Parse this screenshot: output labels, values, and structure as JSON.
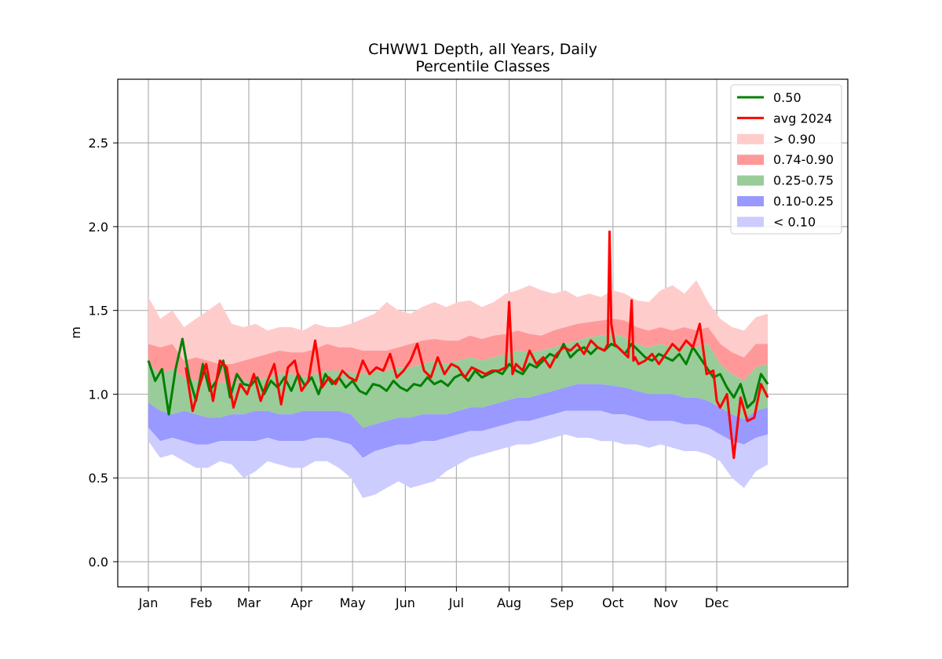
{
  "chart_data": {
    "type": "area",
    "title": "CHWW1 Depth, all Years, Daily",
    "subtitle": "Percentile Classes",
    "xlabel": "",
    "ylabel": "m",
    "ylim": [
      -0.15,
      2.88
    ],
    "xlim": [
      -17,
      412
    ],
    "yticks": [
      0.0,
      0.5,
      1.0,
      1.5,
      2.0,
      2.5
    ],
    "ytick_labels": [
      "0.0",
      "0.5",
      "1.0",
      "1.5",
      "2.0",
      "2.5"
    ],
    "xticks": [
      1,
      32,
      60,
      91,
      121,
      152,
      182,
      213,
      244,
      274,
      305,
      335
    ],
    "xtick_labels": [
      "Jan",
      "Feb",
      "Mar",
      "Apr",
      "May",
      "Jun",
      "Jul",
      "Aug",
      "Sep",
      "Oct",
      "Nov",
      "Dec"
    ],
    "grid": true,
    "legend_position": "top-right",
    "x": [
      1,
      8,
      15,
      22,
      29,
      36,
      43,
      50,
      57,
      64,
      71,
      78,
      85,
      92,
      99,
      106,
      113,
      120,
      127,
      134,
      141,
      148,
      155,
      162,
      169,
      176,
      183,
      190,
      197,
      204,
      211,
      218,
      225,
      232,
      239,
      246,
      253,
      260,
      267,
      274,
      281,
      288,
      295,
      302,
      309,
      316,
      323,
      330,
      337,
      344,
      351,
      358,
      365
    ],
    "bands": [
      {
        "name": "> 0.90",
        "color": "#ffcccc",
        "lower": [
          1.3,
          1.28,
          1.3,
          1.2,
          1.22,
          1.2,
          1.18,
          1.18,
          1.2,
          1.22,
          1.24,
          1.26,
          1.25,
          1.25,
          1.27,
          1.3,
          1.28,
          1.28,
          1.26,
          1.26,
          1.26,
          1.28,
          1.3,
          1.32,
          1.33,
          1.32,
          1.32,
          1.35,
          1.33,
          1.35,
          1.36,
          1.38,
          1.36,
          1.35,
          1.38,
          1.4,
          1.42,
          1.43,
          1.44,
          1.45,
          1.44,
          1.4,
          1.38,
          1.4,
          1.38,
          1.4,
          1.38,
          1.4,
          1.3,
          1.25,
          1.22,
          1.3,
          1.3
        ],
        "upper": [
          1.58,
          1.45,
          1.5,
          1.4,
          1.45,
          1.5,
          1.55,
          1.42,
          1.4,
          1.42,
          1.38,
          1.4,
          1.4,
          1.38,
          1.42,
          1.4,
          1.4,
          1.42,
          1.45,
          1.48,
          1.55,
          1.5,
          1.48,
          1.52,
          1.55,
          1.52,
          1.55,
          1.56,
          1.52,
          1.55,
          1.6,
          1.62,
          1.65,
          1.62,
          1.6,
          1.62,
          1.58,
          1.6,
          1.58,
          1.62,
          1.6,
          1.56,
          1.55,
          1.62,
          1.65,
          1.6,
          1.68,
          1.55,
          1.45,
          1.4,
          1.38,
          1.46,
          1.48
        ]
      },
      {
        "name": "0.74-0.90",
        "color": "#ff9999",
        "lower": [
          1.18,
          1.12,
          1.15,
          1.1,
          1.08,
          1.08,
          1.07,
          1.06,
          1.08,
          1.08,
          1.1,
          1.12,
          1.12,
          1.1,
          1.12,
          1.14,
          1.14,
          1.13,
          1.12,
          1.14,
          1.14,
          1.16,
          1.16,
          1.18,
          1.2,
          1.18,
          1.2,
          1.22,
          1.2,
          1.22,
          1.24,
          1.26,
          1.25,
          1.26,
          1.28,
          1.3,
          1.32,
          1.34,
          1.35,
          1.36,
          1.34,
          1.3,
          1.28,
          1.3,
          1.28,
          1.3,
          1.28,
          1.3,
          1.18,
          1.12,
          1.08,
          1.16,
          1.18
        ],
        "upper": [
          1.3,
          1.28,
          1.3,
          1.2,
          1.22,
          1.2,
          1.18,
          1.18,
          1.2,
          1.22,
          1.24,
          1.26,
          1.25,
          1.25,
          1.27,
          1.3,
          1.28,
          1.28,
          1.26,
          1.26,
          1.26,
          1.28,
          1.3,
          1.32,
          1.33,
          1.32,
          1.32,
          1.35,
          1.33,
          1.35,
          1.36,
          1.38,
          1.36,
          1.35,
          1.38,
          1.4,
          1.42,
          1.43,
          1.44,
          1.45,
          1.44,
          1.4,
          1.38,
          1.4,
          1.38,
          1.4,
          1.38,
          1.4,
          1.3,
          1.25,
          1.22,
          1.3,
          1.3
        ]
      },
      {
        "name": "0.25-0.75",
        "color": "#99cc99",
        "lower": [
          0.95,
          0.9,
          0.88,
          0.9,
          0.88,
          0.86,
          0.86,
          0.88,
          0.88,
          0.9,
          0.9,
          0.88,
          0.88,
          0.9,
          0.9,
          0.9,
          0.9,
          0.88,
          0.8,
          0.82,
          0.84,
          0.86,
          0.86,
          0.88,
          0.88,
          0.88,
          0.9,
          0.92,
          0.92,
          0.94,
          0.96,
          0.98,
          0.98,
          1.0,
          1.02,
          1.04,
          1.06,
          1.06,
          1.06,
          1.05,
          1.04,
          1.02,
          1.0,
          1.0,
          1.0,
          0.98,
          0.98,
          0.96,
          0.92,
          0.88,
          0.85,
          0.9,
          0.92
        ],
        "upper": [
          1.18,
          1.12,
          1.15,
          1.1,
          1.08,
          1.08,
          1.07,
          1.06,
          1.08,
          1.08,
          1.1,
          1.12,
          1.12,
          1.1,
          1.12,
          1.14,
          1.14,
          1.13,
          1.12,
          1.14,
          1.14,
          1.16,
          1.16,
          1.18,
          1.2,
          1.18,
          1.2,
          1.22,
          1.2,
          1.22,
          1.24,
          1.26,
          1.25,
          1.26,
          1.28,
          1.3,
          1.32,
          1.34,
          1.35,
          1.36,
          1.34,
          1.3,
          1.28,
          1.3,
          1.28,
          1.3,
          1.28,
          1.3,
          1.18,
          1.12,
          1.08,
          1.16,
          1.18
        ]
      },
      {
        "name": "0.10-0.25",
        "color": "#9999ff",
        "lower": [
          0.8,
          0.72,
          0.74,
          0.72,
          0.7,
          0.7,
          0.72,
          0.72,
          0.72,
          0.72,
          0.74,
          0.72,
          0.72,
          0.72,
          0.74,
          0.74,
          0.72,
          0.7,
          0.62,
          0.66,
          0.68,
          0.7,
          0.7,
          0.72,
          0.72,
          0.74,
          0.76,
          0.78,
          0.78,
          0.8,
          0.82,
          0.84,
          0.84,
          0.86,
          0.88,
          0.9,
          0.9,
          0.9,
          0.9,
          0.88,
          0.88,
          0.86,
          0.84,
          0.84,
          0.84,
          0.82,
          0.82,
          0.8,
          0.76,
          0.72,
          0.7,
          0.74,
          0.76
        ],
        "upper": [
          0.95,
          0.9,
          0.88,
          0.9,
          0.88,
          0.86,
          0.86,
          0.88,
          0.88,
          0.9,
          0.9,
          0.88,
          0.88,
          0.9,
          0.9,
          0.9,
          0.9,
          0.88,
          0.8,
          0.82,
          0.84,
          0.86,
          0.86,
          0.88,
          0.88,
          0.88,
          0.9,
          0.92,
          0.92,
          0.94,
          0.96,
          0.98,
          0.98,
          1.0,
          1.02,
          1.04,
          1.06,
          1.06,
          1.06,
          1.05,
          1.04,
          1.02,
          1.0,
          1.0,
          1.0,
          0.98,
          0.98,
          0.96,
          0.92,
          0.88,
          0.85,
          0.9,
          0.92
        ]
      },
      {
        "name": "< 0.10",
        "color": "#ccccff",
        "lower": [
          0.72,
          0.62,
          0.64,
          0.6,
          0.56,
          0.56,
          0.6,
          0.58,
          0.5,
          0.54,
          0.6,
          0.58,
          0.56,
          0.56,
          0.6,
          0.6,
          0.56,
          0.5,
          0.38,
          0.4,
          0.44,
          0.48,
          0.44,
          0.46,
          0.48,
          0.54,
          0.58,
          0.62,
          0.64,
          0.66,
          0.68,
          0.7,
          0.7,
          0.72,
          0.74,
          0.76,
          0.74,
          0.74,
          0.72,
          0.72,
          0.7,
          0.7,
          0.68,
          0.7,
          0.68,
          0.66,
          0.66,
          0.64,
          0.6,
          0.5,
          0.44,
          0.54,
          0.58
        ],
        "upper": [
          0.8,
          0.72,
          0.74,
          0.72,
          0.7,
          0.7,
          0.72,
          0.72,
          0.72,
          0.72,
          0.74,
          0.72,
          0.72,
          0.72,
          0.74,
          0.74,
          0.72,
          0.7,
          0.62,
          0.66,
          0.68,
          0.7,
          0.7,
          0.72,
          0.72,
          0.74,
          0.76,
          0.78,
          0.78,
          0.8,
          0.82,
          0.84,
          0.84,
          0.86,
          0.88,
          0.9,
          0.9,
          0.9,
          0.9,
          0.88,
          0.88,
          0.86,
          0.84,
          0.84,
          0.84,
          0.82,
          0.82,
          0.8,
          0.76,
          0.72,
          0.7,
          0.74,
          0.76
        ]
      }
    ],
    "series": [
      {
        "name": "0.50",
        "color": "#008000",
        "x": [
          1,
          5,
          9,
          13,
          17,
          21,
          25,
          29,
          33,
          37,
          41,
          45,
          49,
          53,
          57,
          61,
          65,
          69,
          73,
          77,
          81,
          85,
          89,
          93,
          97,
          101,
          105,
          109,
          113,
          117,
          121,
          125,
          129,
          133,
          137,
          141,
          145,
          149,
          153,
          157,
          161,
          165,
          169,
          173,
          177,
          181,
          185,
          189,
          193,
          197,
          201,
          205,
          209,
          213,
          217,
          221,
          225,
          229,
          233,
          237,
          241,
          245,
          249,
          253,
          257,
          261,
          265,
          269,
          273,
          277,
          281,
          285,
          289,
          293,
          297,
          301,
          305,
          309,
          313,
          317,
          321,
          325,
          329,
          333,
          337,
          341,
          345,
          349,
          353,
          357,
          361,
          365
        ],
        "values": [
          1.2,
          1.08,
          1.15,
          0.88,
          1.15,
          1.33,
          1.1,
          0.96,
          1.18,
          1.02,
          1.08,
          1.2,
          0.98,
          1.12,
          1.06,
          1.05,
          1.1,
          1.0,
          1.08,
          1.04,
          1.1,
          1.02,
          1.12,
          1.05,
          1.1,
          1.0,
          1.12,
          1.06,
          1.1,
          1.04,
          1.08,
          1.02,
          1.0,
          1.06,
          1.05,
          1.02,
          1.08,
          1.04,
          1.02,
          1.06,
          1.05,
          1.1,
          1.06,
          1.08,
          1.05,
          1.1,
          1.12,
          1.08,
          1.14,
          1.1,
          1.12,
          1.14,
          1.12,
          1.18,
          1.14,
          1.12,
          1.18,
          1.16,
          1.2,
          1.24,
          1.22,
          1.3,
          1.22,
          1.26,
          1.28,
          1.24,
          1.28,
          1.26,
          1.3,
          1.28,
          1.24,
          1.3,
          1.26,
          1.22,
          1.2,
          1.24,
          1.22,
          1.2,
          1.24,
          1.18,
          1.28,
          1.22,
          1.16,
          1.1,
          1.12,
          1.04,
          0.98,
          1.06,
          0.92,
          0.96,
          1.12,
          1.06
        ]
      },
      {
        "name": "avg 2024",
        "color": "#ff0000",
        "x": [
          23,
          27,
          31,
          35,
          39,
          43,
          47,
          51,
          55,
          59,
          63,
          67,
          71,
          75,
          79,
          83,
          87,
          91,
          95,
          99,
          103,
          107,
          111,
          115,
          119,
          123,
          127,
          131,
          135,
          139,
          143,
          147,
          151,
          155,
          159,
          163,
          167,
          171,
          175,
          179,
          183,
          187,
          191,
          195,
          199,
          203,
          207,
          211,
          213,
          215,
          217,
          221,
          225,
          229,
          233,
          237,
          241,
          245,
          249,
          253,
          257,
          261,
          265,
          269,
          271,
          272,
          273,
          275,
          279,
          283,
          285,
          286,
          287,
          289,
          293,
          297,
          301,
          305,
          309,
          313,
          317,
          321,
          325,
          329,
          333,
          335,
          337,
          341,
          345,
          349,
          353,
          357,
          361,
          365
        ],
        "values": [
          1.16,
          0.9,
          1.05,
          1.18,
          0.96,
          1.2,
          1.16,
          0.92,
          1.06,
          1.0,
          1.12,
          0.96,
          1.08,
          1.18,
          0.94,
          1.16,
          1.2,
          1.02,
          1.08,
          1.32,
          1.04,
          1.1,
          1.06,
          1.14,
          1.1,
          1.08,
          1.2,
          1.12,
          1.16,
          1.14,
          1.24,
          1.1,
          1.14,
          1.2,
          1.3,
          1.14,
          1.1,
          1.22,
          1.12,
          1.18,
          1.16,
          1.1,
          1.16,
          1.14,
          1.12,
          1.14,
          1.14,
          1.16,
          1.55,
          1.12,
          1.18,
          1.14,
          1.26,
          1.18,
          1.22,
          1.16,
          1.24,
          1.28,
          1.26,
          1.3,
          1.24,
          1.32,
          1.28,
          1.26,
          1.3,
          1.97,
          1.42,
          1.3,
          1.26,
          1.22,
          1.56,
          1.2,
          1.22,
          1.18,
          1.2,
          1.24,
          1.18,
          1.24,
          1.3,
          1.26,
          1.32,
          1.28,
          1.42,
          1.12,
          1.14,
          0.96,
          0.92,
          1.0,
          0.62,
          0.98,
          0.84,
          0.86,
          1.06,
          0.98
        ]
      }
    ]
  }
}
